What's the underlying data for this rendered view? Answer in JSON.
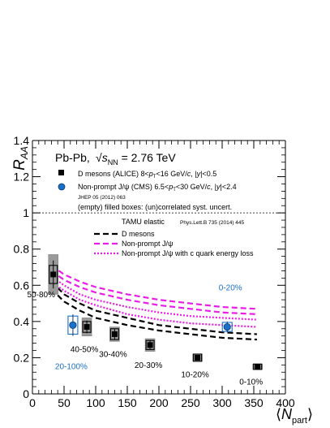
{
  "chart_data": {
    "type": "scatter",
    "ylabel": "R_AA",
    "xlabel": "⟨N_part⟩",
    "xlim": [
      0,
      400
    ],
    "ylim": [
      0,
      1.4
    ],
    "xticks": [
      0,
      50,
      100,
      150,
      200,
      250,
      300,
      350,
      400
    ],
    "yticks": [
      0,
      0.2,
      0.4,
      0.6,
      0.8,
      1,
      1.2,
      1.4
    ],
    "grid": false,
    "reference_line": 1,
    "system_label": "Pb-Pb,",
    "energy_label": "√s_NN = 2.76 TeV",
    "legend": [
      {
        "marker": "square",
        "color": "#000000",
        "label": "D mesons (ALICE) 8<p_T<16 GeV/c, |y|<0.5"
      },
      {
        "marker": "circle",
        "color": "#1a6fc6",
        "label": "Non-prompt J/ψ (CMS) 6.5<p_T<30 GeV/c, |y|<2.4"
      }
    ],
    "cms_ref": "JHEP 05 (2012) 063",
    "boxes_note": "(empty) filled boxes: (un)correlated syst. uncert.",
    "model_title": "TAMU elastic",
    "model_ref": "Phys.Lett.B 735 (2014) 445",
    "model_legend": [
      {
        "label": "D mesons",
        "style": "dashed",
        "color": "#000000"
      },
      {
        "label": "Non-prompt J/ψ",
        "style": "dashed",
        "color": "#e81ee8"
      },
      {
        "label": "Non-prompt J/ψ with c quark energy loss",
        "style": "dotted",
        "color": "#e81ee8"
      }
    ],
    "series": [
      {
        "name": "D mesons (ALICE)",
        "color": "#000000",
        "points": [
          {
            "x": 33,
            "y": 0.66,
            "label": "50-80%"
          },
          {
            "x": 86,
            "y": 0.37,
            "label": "40-50%"
          },
          {
            "x": 130,
            "y": 0.33,
            "label": "30-40%"
          },
          {
            "x": 186,
            "y": 0.27,
            "label": "20-30%"
          },
          {
            "x": 261,
            "y": 0.2,
            "label": "10-20%"
          },
          {
            "x": 356,
            "y": 0.15,
            "label": "0-10%"
          }
        ]
      },
      {
        "name": "Non-prompt J/ψ (CMS)",
        "color": "#1a6fc6",
        "points": [
          {
            "x": 64,
            "y": 0.38,
            "label": "20-100%"
          },
          {
            "x": 308,
            "y": 0.37,
            "label": "0-20%"
          }
        ]
      }
    ],
    "model_curves": {
      "x": [
        30,
        50,
        75,
        100,
        150,
        200,
        250,
        300,
        355
      ],
      "D_mesons": {
        "low": [
          0.58,
          0.51,
          0.46,
          0.42,
          0.38,
          0.35,
          0.33,
          0.31,
          0.3
        ],
        "high": [
          0.62,
          0.55,
          0.5,
          0.46,
          0.42,
          0.38,
          0.36,
          0.34,
          0.33
        ]
      },
      "nonprompt_Jpsi": {
        "low": [
          0.68,
          0.63,
          0.59,
          0.56,
          0.52,
          0.49,
          0.47,
          0.45,
          0.44
        ],
        "high": [
          0.71,
          0.66,
          0.62,
          0.59,
          0.55,
          0.52,
          0.5,
          0.48,
          0.47
        ]
      },
      "nonprompt_Jpsi_eloss": {
        "low": [
          0.62,
          0.57,
          0.52,
          0.49,
          0.44,
          0.41,
          0.39,
          0.38,
          0.37
        ],
        "high": [
          0.65,
          0.6,
          0.55,
          0.52,
          0.48,
          0.45,
          0.43,
          0.42,
          0.41
        ]
      }
    }
  }
}
